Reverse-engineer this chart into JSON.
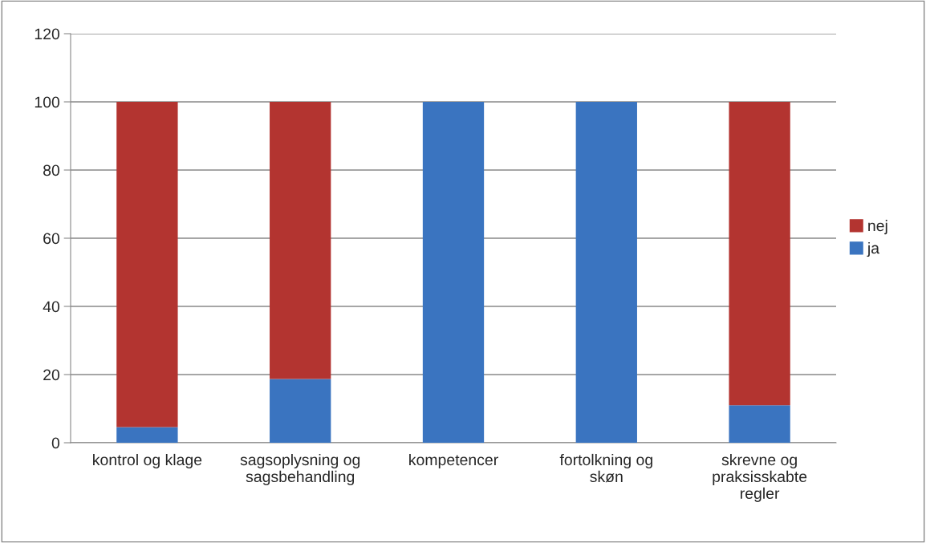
{
  "chart_data": {
    "type": "bar",
    "stacked": true,
    "categories": [
      "kontrol og klage",
      "sagsoplysning og\nsagsbehandling",
      "kompetencer",
      "fortolkning og\nskøn",
      "skrevne og\npraksisskabte\nregler"
    ],
    "series": [
      {
        "name": "ja",
        "color": "#3a74c0",
        "values": [
          4.6,
          18.7,
          100,
          100,
          11
        ]
      },
      {
        "name": "nej",
        "color": "#b33430",
        "values": [
          95.4,
          81.3,
          0,
          0,
          89
        ]
      }
    ],
    "ylim": [
      0,
      120
    ],
    "yticks": [
      0,
      20,
      40,
      60,
      80,
      100,
      120
    ],
    "grid": "y",
    "legend": "right"
  }
}
